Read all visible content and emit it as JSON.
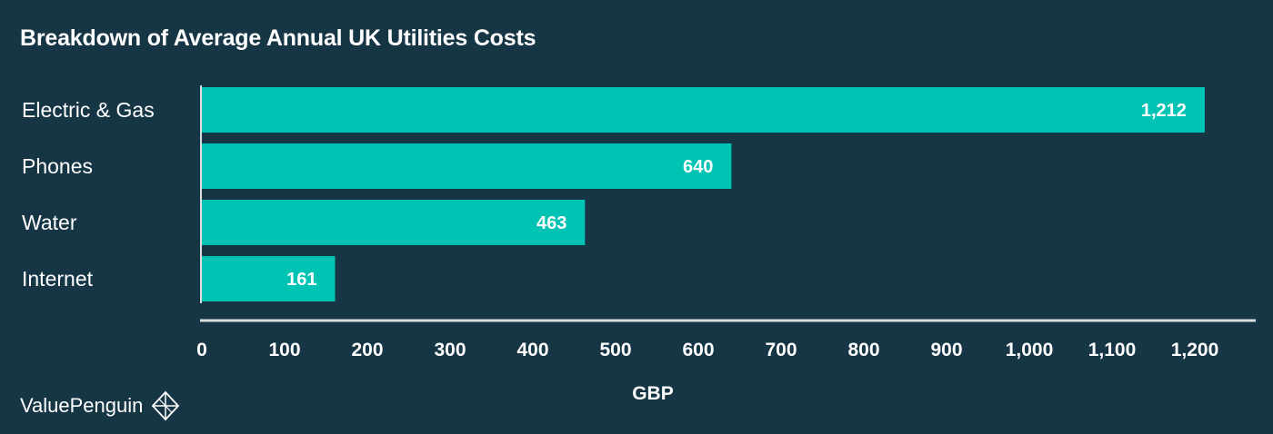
{
  "chart_data": {
    "type": "bar",
    "orientation": "horizontal",
    "title": "Breakdown of Average Annual UK Utilities Costs",
    "categories": [
      "Electric & Gas",
      "Phones",
      "Water",
      "Internet"
    ],
    "values": [
      1212,
      640,
      463,
      161
    ],
    "value_labels": [
      "1,212",
      "640",
      "463",
      "161"
    ],
    "xlabel": "GBP",
    "ylabel": "",
    "xlim": [
      0,
      1275
    ],
    "xticks": [
      0,
      100,
      200,
      300,
      400,
      500,
      600,
      700,
      800,
      900,
      1000,
      1100,
      1200
    ],
    "xtick_labels": [
      "0",
      "100",
      "200",
      "300",
      "400",
      "500",
      "600",
      "700",
      "800",
      "900",
      "1,000",
      "1,100",
      "1,200"
    ],
    "grid": false,
    "legend": "none",
    "colors": {
      "background": "#163545",
      "bar": "#00c4b3",
      "axis": "#d9dde0",
      "text": "#ffffff"
    }
  },
  "branding": {
    "name": "ValuePenguin",
    "icon": "valuepenguin-logo-icon"
  }
}
